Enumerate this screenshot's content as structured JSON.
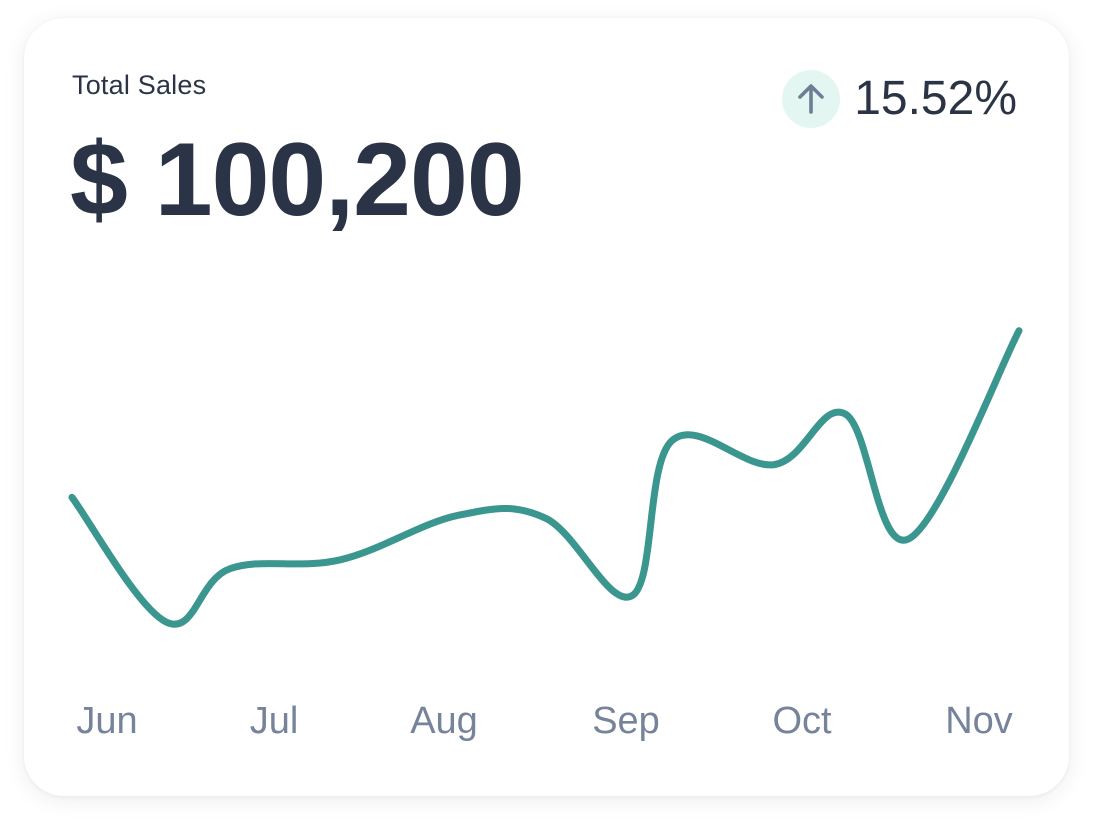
{
  "card": {
    "label": "Total Sales",
    "amount": "$ 100,200",
    "change": "15.52%",
    "change_icon": "arrow-up-icon",
    "accent_color": "#3a968e",
    "badge_color": "#e3f6f1"
  },
  "chart_data": {
    "type": "line",
    "categories": [
      "Jun",
      "Jul",
      "Aug",
      "Sep",
      "Oct",
      "Nov"
    ],
    "x": [
      0,
      0.6,
      1.0,
      1.7,
      2.45,
      3.0,
      3.55,
      3.8,
      4.45,
      4.9,
      5.3,
      6.0
    ],
    "series": [
      {
        "values": [
          54,
          12,
          30,
          33,
          48,
          47,
          21,
          73,
          65,
          82,
          40,
          110
        ]
      }
    ],
    "ylim": [
      0,
      120
    ],
    "grid": false,
    "legend": "none"
  }
}
